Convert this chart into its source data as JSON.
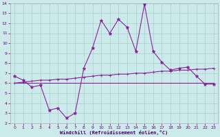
{
  "xlabel": "Windchill (Refroidissement éolien,°C)",
  "background_color": "#cceaea",
  "line_color": "#882299",
  "grid_color": "#aacccc",
  "xlim": [
    -0.5,
    23.5
  ],
  "ylim": [
    2,
    14
  ],
  "xticks": [
    0,
    1,
    2,
    3,
    4,
    5,
    6,
    7,
    8,
    9,
    10,
    11,
    12,
    13,
    14,
    15,
    16,
    17,
    18,
    19,
    20,
    21,
    22,
    23
  ],
  "yticks": [
    2,
    3,
    4,
    5,
    6,
    7,
    8,
    9,
    10,
    11,
    12,
    13,
    14
  ],
  "line1_x": [
    0,
    1,
    2,
    3,
    4,
    5,
    6,
    7,
    8,
    9,
    10,
    11,
    12,
    13,
    14,
    15,
    16,
    17,
    18,
    19,
    20,
    21,
    22,
    23
  ],
  "line1_y": [
    6.7,
    6.3,
    5.6,
    5.8,
    3.3,
    3.5,
    2.5,
    3.0,
    7.5,
    9.5,
    12.3,
    11.0,
    12.4,
    11.6,
    9.2,
    13.9,
    9.2,
    8.1,
    7.3,
    7.5,
    7.6,
    6.7,
    5.9,
    5.9
  ],
  "line2_x": [
    0,
    23
  ],
  "line2_y": [
    6.0,
    6.0
  ],
  "line3_x": [
    0,
    1,
    2,
    3,
    4,
    5,
    6,
    7,
    8,
    9,
    10,
    11,
    12,
    13,
    14,
    15,
    16,
    17,
    18,
    19,
    20,
    21,
    22,
    23
  ],
  "line3_y": [
    6.0,
    6.1,
    6.2,
    6.3,
    6.3,
    6.4,
    6.4,
    6.5,
    6.6,
    6.7,
    6.8,
    6.8,
    6.9,
    6.9,
    7.0,
    7.0,
    7.1,
    7.2,
    7.2,
    7.3,
    7.3,
    7.4,
    7.4,
    7.5
  ]
}
